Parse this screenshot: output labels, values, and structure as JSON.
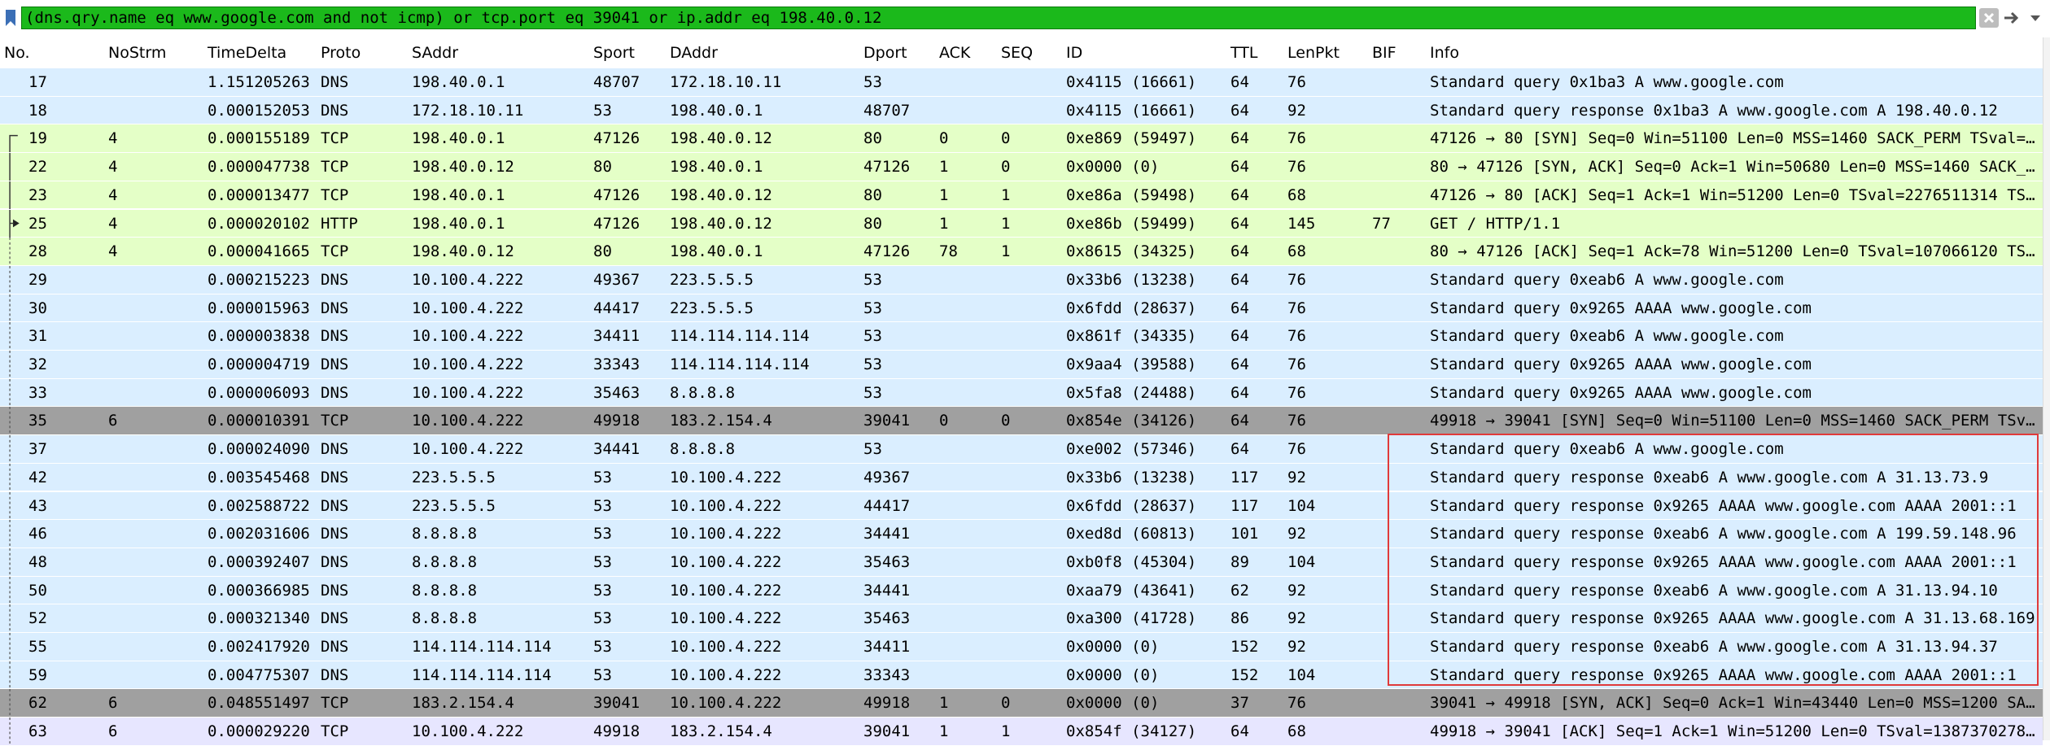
{
  "filter": {
    "expression": "(dns.qry.name eq www.google.com and not icmp) or tcp.port eq 39041 or ip.addr eq 198.40.0.12"
  },
  "icons": {
    "bookmark": "bookmark-icon",
    "clear": "clear-filter-icon",
    "apply": "apply-filter-arrow-icon",
    "recent": "chevron-down-icon"
  },
  "columns": [
    "No.",
    "NoStrm",
    "TimeDelta",
    "Proto",
    "SAddr",
    "Sport",
    "DAddr",
    "Dport",
    "ACK",
    "SEQ",
    "ID",
    "TTL",
    "LenPkt",
    "BIF",
    "Info"
  ],
  "colors": {
    "dns_row": "#daeeff",
    "tcp_row": "#e4ffc7",
    "dark_row": "#a0a0a0",
    "selected_row": "#e7e6ff",
    "filter_ok": "#1bb91b",
    "highlight_box": "#e03a3a"
  },
  "rows": [
    {
      "no": "17",
      "strm": "",
      "delta": "1.151205263",
      "proto": "DNS",
      "saddr": "198.40.0.1",
      "sport": "48707",
      "daddr": "172.18.10.11",
      "dport": "53",
      "ack": "",
      "seq": "",
      "id": "0x4115 (16661)",
      "ttl": "64",
      "len": "76",
      "bif": "",
      "info": "Standard query 0x1ba3 A www.google.com",
      "style": "dns",
      "rel": ""
    },
    {
      "no": "18",
      "strm": "",
      "delta": "0.000152053",
      "proto": "DNS",
      "saddr": "172.18.10.11",
      "sport": "53",
      "daddr": "198.40.0.1",
      "dport": "48707",
      "ack": "",
      "seq": "",
      "id": "0x4115 (16661)",
      "ttl": "64",
      "len": "92",
      "bif": "",
      "info": "Standard query response 0x1ba3 A www.google.com A 198.40.0.12",
      "style": "dns",
      "rel": ""
    },
    {
      "no": "19",
      "strm": "4",
      "delta": "0.000155189",
      "proto": "TCP",
      "saddr": "198.40.0.1",
      "sport": "47126",
      "daddr": "198.40.0.12",
      "dport": "80",
      "ack": "0",
      "seq": "0",
      "id": "0xe869 (59497)",
      "ttl": "64",
      "len": "76",
      "bif": "",
      "info": "47126 → 80 [SYN] Seq=0 Win=51100 Len=0 MSS=1460 SACK_PERM TSval=…",
      "style": "tcp",
      "rel": "start"
    },
    {
      "no": "22",
      "strm": "4",
      "delta": "0.000047738",
      "proto": "TCP",
      "saddr": "198.40.0.12",
      "sport": "80",
      "daddr": "198.40.0.1",
      "dport": "47126",
      "ack": "1",
      "seq": "0",
      "id": "0x0000 (0)",
      "ttl": "64",
      "len": "76",
      "bif": "",
      "info": "80 → 47126 [SYN, ACK] Seq=0 Ack=1 Win=50680 Len=0 MSS=1460 SACK_…",
      "style": "tcp",
      "rel": "mid"
    },
    {
      "no": "23",
      "strm": "4",
      "delta": "0.000013477",
      "proto": "TCP",
      "saddr": "198.40.0.1",
      "sport": "47126",
      "daddr": "198.40.0.12",
      "dport": "80",
      "ack": "1",
      "seq": "1",
      "id": "0xe86a (59498)",
      "ttl": "64",
      "len": "68",
      "bif": "",
      "info": "47126 → 80 [ACK] Seq=1 Ack=1 Win=51200 Len=0 TSval=2276511314 TS…",
      "style": "tcp",
      "rel": "mid"
    },
    {
      "no": "25",
      "strm": "4",
      "delta": "0.000020102",
      "proto": "HTTP",
      "saddr": "198.40.0.1",
      "sport": "47126",
      "daddr": "198.40.0.12",
      "dport": "80",
      "ack": "1",
      "seq": "1",
      "id": "0xe86b (59499)",
      "ttl": "64",
      "len": "145",
      "bif": "77",
      "info": "GET / HTTP/1.1",
      "style": "tcp",
      "rel": "request"
    },
    {
      "no": "28",
      "strm": "4",
      "delta": "0.000041665",
      "proto": "TCP",
      "saddr": "198.40.0.12",
      "sport": "80",
      "daddr": "198.40.0.1",
      "dport": "47126",
      "ack": "78",
      "seq": "1",
      "id": "0x8615 (34325)",
      "ttl": "64",
      "len": "68",
      "bif": "",
      "info": "80 → 47126 [ACK] Seq=1 Ack=78 Win=51200 Len=0 TSval=107066120 TS…",
      "style": "tcp",
      "rel": "dash"
    },
    {
      "no": "29",
      "strm": "",
      "delta": "0.000215223",
      "proto": "DNS",
      "saddr": "10.100.4.222",
      "sport": "49367",
      "daddr": "223.5.5.5",
      "dport": "53",
      "ack": "",
      "seq": "",
      "id": "0x33b6 (13238)",
      "ttl": "64",
      "len": "76",
      "bif": "",
      "info": "Standard query 0xeab6 A www.google.com",
      "style": "dns",
      "rel": "dash"
    },
    {
      "no": "30",
      "strm": "",
      "delta": "0.000015963",
      "proto": "DNS",
      "saddr": "10.100.4.222",
      "sport": "44417",
      "daddr": "223.5.5.5",
      "dport": "53",
      "ack": "",
      "seq": "",
      "id": "0x6fdd (28637)",
      "ttl": "64",
      "len": "76",
      "bif": "",
      "info": "Standard query 0x9265 AAAA www.google.com",
      "style": "dns",
      "rel": "dash"
    },
    {
      "no": "31",
      "strm": "",
      "delta": "0.000003838",
      "proto": "DNS",
      "saddr": "10.100.4.222",
      "sport": "34411",
      "daddr": "114.114.114.114",
      "dport": "53",
      "ack": "",
      "seq": "",
      "id": "0x861f (34335)",
      "ttl": "64",
      "len": "76",
      "bif": "",
      "info": "Standard query 0xeab6 A www.google.com",
      "style": "dns",
      "rel": "dash"
    },
    {
      "no": "32",
      "strm": "",
      "delta": "0.000004719",
      "proto": "DNS",
      "saddr": "10.100.4.222",
      "sport": "33343",
      "daddr": "114.114.114.114",
      "dport": "53",
      "ack": "",
      "seq": "",
      "id": "0x9aa4 (39588)",
      "ttl": "64",
      "len": "76",
      "bif": "",
      "info": "Standard query 0x9265 AAAA www.google.com",
      "style": "dns",
      "rel": "dash"
    },
    {
      "no": "33",
      "strm": "",
      "delta": "0.000006093",
      "proto": "DNS",
      "saddr": "10.100.4.222",
      "sport": "35463",
      "daddr": "8.8.8.8",
      "dport": "53",
      "ack": "",
      "seq": "",
      "id": "0x5fa8 (24488)",
      "ttl": "64",
      "len": "76",
      "bif": "",
      "info": "Standard query 0x9265 AAAA www.google.com",
      "style": "dns",
      "rel": "dash"
    },
    {
      "no": "35",
      "strm": "6",
      "delta": "0.000010391",
      "proto": "TCP",
      "saddr": "10.100.4.222",
      "sport": "49918",
      "daddr": "183.2.154.4",
      "dport": "39041",
      "ack": "0",
      "seq": "0",
      "id": "0x854e (34126)",
      "ttl": "64",
      "len": "76",
      "bif": "",
      "info": "49918 → 39041 [SYN] Seq=0 Win=51100 Len=0 MSS=1460 SACK_PERM TSv…",
      "style": "dark",
      "rel": "dash"
    },
    {
      "no": "37",
      "strm": "",
      "delta": "0.000024090",
      "proto": "DNS",
      "saddr": "10.100.4.222",
      "sport": "34441",
      "daddr": "8.8.8.8",
      "dport": "53",
      "ack": "",
      "seq": "",
      "id": "0xe002 (57346)",
      "ttl": "64",
      "len": "76",
      "bif": "",
      "info": "Standard query 0xeab6 A www.google.com",
      "style": "dns",
      "rel": "dash"
    },
    {
      "no": "42",
      "strm": "",
      "delta": "0.003545468",
      "proto": "DNS",
      "saddr": "223.5.5.5",
      "sport": "53",
      "daddr": "10.100.4.222",
      "dport": "49367",
      "ack": "",
      "seq": "",
      "id": "0x33b6 (13238)",
      "ttl": "117",
      "len": "92",
      "bif": "",
      "info": "Standard query response 0xeab6 A www.google.com A 31.13.73.9",
      "style": "dns",
      "rel": "dash"
    },
    {
      "no": "43",
      "strm": "",
      "delta": "0.002588722",
      "proto": "DNS",
      "saddr": "223.5.5.5",
      "sport": "53",
      "daddr": "10.100.4.222",
      "dport": "44417",
      "ack": "",
      "seq": "",
      "id": "0x6fdd (28637)",
      "ttl": "117",
      "len": "104",
      "bif": "",
      "info": "Standard query response 0x9265 AAAA www.google.com AAAA 2001::1",
      "style": "dns",
      "rel": "dash"
    },
    {
      "no": "46",
      "strm": "",
      "delta": "0.002031606",
      "proto": "DNS",
      "saddr": "8.8.8.8",
      "sport": "53",
      "daddr": "10.100.4.222",
      "dport": "34441",
      "ack": "",
      "seq": "",
      "id": "0xed8d (60813)",
      "ttl": "101",
      "len": "92",
      "bif": "",
      "info": "Standard query response 0xeab6 A www.google.com A 199.59.148.96",
      "style": "dns",
      "rel": "dash"
    },
    {
      "no": "48",
      "strm": "",
      "delta": "0.000392407",
      "proto": "DNS",
      "saddr": "8.8.8.8",
      "sport": "53",
      "daddr": "10.100.4.222",
      "dport": "35463",
      "ack": "",
      "seq": "",
      "id": "0xb0f8 (45304)",
      "ttl": "89",
      "len": "104",
      "bif": "",
      "info": "Standard query response 0x9265 AAAA www.google.com AAAA 2001::1",
      "style": "dns",
      "rel": "dash"
    },
    {
      "no": "50",
      "strm": "",
      "delta": "0.000366985",
      "proto": "DNS",
      "saddr": "8.8.8.8",
      "sport": "53",
      "daddr": "10.100.4.222",
      "dport": "34441",
      "ack": "",
      "seq": "",
      "id": "0xaa79 (43641)",
      "ttl": "62",
      "len": "92",
      "bif": "",
      "info": "Standard query response 0xeab6 A www.google.com A 31.13.94.10",
      "style": "dns",
      "rel": "dash"
    },
    {
      "no": "52",
      "strm": "",
      "delta": "0.000321340",
      "proto": "DNS",
      "saddr": "8.8.8.8",
      "sport": "53",
      "daddr": "10.100.4.222",
      "dport": "35463",
      "ack": "",
      "seq": "",
      "id": "0xa300 (41728)",
      "ttl": "86",
      "len": "92",
      "bif": "",
      "info": "Standard query response 0x9265 AAAA www.google.com A 31.13.68.169",
      "style": "dns",
      "rel": "dash"
    },
    {
      "no": "55",
      "strm": "",
      "delta": "0.002417920",
      "proto": "DNS",
      "saddr": "114.114.114.114",
      "sport": "53",
      "daddr": "10.100.4.222",
      "dport": "34411",
      "ack": "",
      "seq": "",
      "id": "0x0000 (0)",
      "ttl": "152",
      "len": "92",
      "bif": "",
      "info": "Standard query response 0xeab6 A www.google.com A 31.13.94.37",
      "style": "dns",
      "rel": "dash"
    },
    {
      "no": "59",
      "strm": "",
      "delta": "0.004775307",
      "proto": "DNS",
      "saddr": "114.114.114.114",
      "sport": "53",
      "daddr": "10.100.4.222",
      "dport": "33343",
      "ack": "",
      "seq": "",
      "id": "0x0000 (0)",
      "ttl": "152",
      "len": "104",
      "bif": "",
      "info": "Standard query response 0x9265 AAAA www.google.com AAAA 2001::1",
      "style": "dns",
      "rel": "dash"
    },
    {
      "no": "62",
      "strm": "6",
      "delta": "0.048551497",
      "proto": "TCP",
      "saddr": "183.2.154.4",
      "sport": "39041",
      "daddr": "10.100.4.222",
      "dport": "49918",
      "ack": "1",
      "seq": "0",
      "id": "0x0000 (0)",
      "ttl": "37",
      "len": "76",
      "bif": "",
      "info": "39041 → 49918 [SYN, ACK] Seq=0 Ack=1 Win=43440 Len=0 MSS=1200 SA…",
      "style": "dark",
      "rel": "dash"
    },
    {
      "no": "63",
      "strm": "6",
      "delta": "0.000029220",
      "proto": "TCP",
      "saddr": "10.100.4.222",
      "sport": "49918",
      "daddr": "183.2.154.4",
      "dport": "39041",
      "ack": "1",
      "seq": "1",
      "id": "0x854f (34127)",
      "ttl": "64",
      "len": "68",
      "bif": "",
      "info": "49918 → 39041 [ACK] Seq=1 Ack=1 Win=51200 Len=0 TSval=1387370278…",
      "style": "selected",
      "rel": "dash"
    }
  ]
}
